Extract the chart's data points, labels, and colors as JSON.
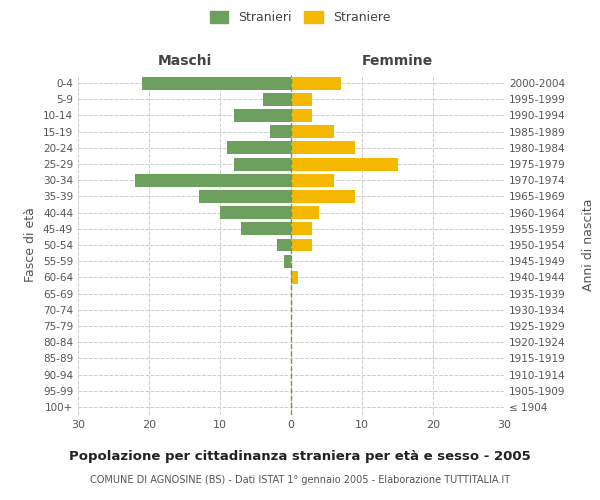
{
  "age_groups": [
    "100+",
    "95-99",
    "90-94",
    "85-89",
    "80-84",
    "75-79",
    "70-74",
    "65-69",
    "60-64",
    "55-59",
    "50-54",
    "45-49",
    "40-44",
    "35-39",
    "30-34",
    "25-29",
    "20-24",
    "15-19",
    "10-14",
    "5-9",
    "0-4"
  ],
  "birth_years": [
    "≤ 1904",
    "1905-1909",
    "1910-1914",
    "1915-1919",
    "1920-1924",
    "1925-1929",
    "1930-1934",
    "1935-1939",
    "1940-1944",
    "1945-1949",
    "1950-1954",
    "1955-1959",
    "1960-1964",
    "1965-1969",
    "1970-1974",
    "1975-1979",
    "1980-1984",
    "1985-1989",
    "1990-1994",
    "1995-1999",
    "2000-2004"
  ],
  "males": [
    0,
    0,
    0,
    0,
    0,
    0,
    0,
    0,
    0,
    1,
    2,
    7,
    10,
    13,
    22,
    8,
    9,
    3,
    8,
    4,
    21
  ],
  "females": [
    0,
    0,
    0,
    0,
    0,
    0,
    0,
    0,
    1,
    0,
    3,
    3,
    4,
    9,
    6,
    15,
    9,
    6,
    3,
    3,
    7
  ],
  "male_color": "#6d9f5e",
  "female_color": "#f5b800",
  "background_color": "#ffffff",
  "grid_color": "#cccccc",
  "title": "Popolazione per cittadinanza straniera per età e sesso - 2005",
  "subtitle": "COMUNE DI AGNOSINE (BS) - Dati ISTAT 1° gennaio 2005 - Elaborazione TUTTITALIA.IT",
  "ylabel_left": "Fasce di età",
  "ylabel_right": "Anni di nascita",
  "xlabel_maschi": "Maschi",
  "xlabel_femmine": "Femmine",
  "legend_males": "Stranieri",
  "legend_females": "Straniere",
  "xlim": 30,
  "bar_height": 0.8
}
